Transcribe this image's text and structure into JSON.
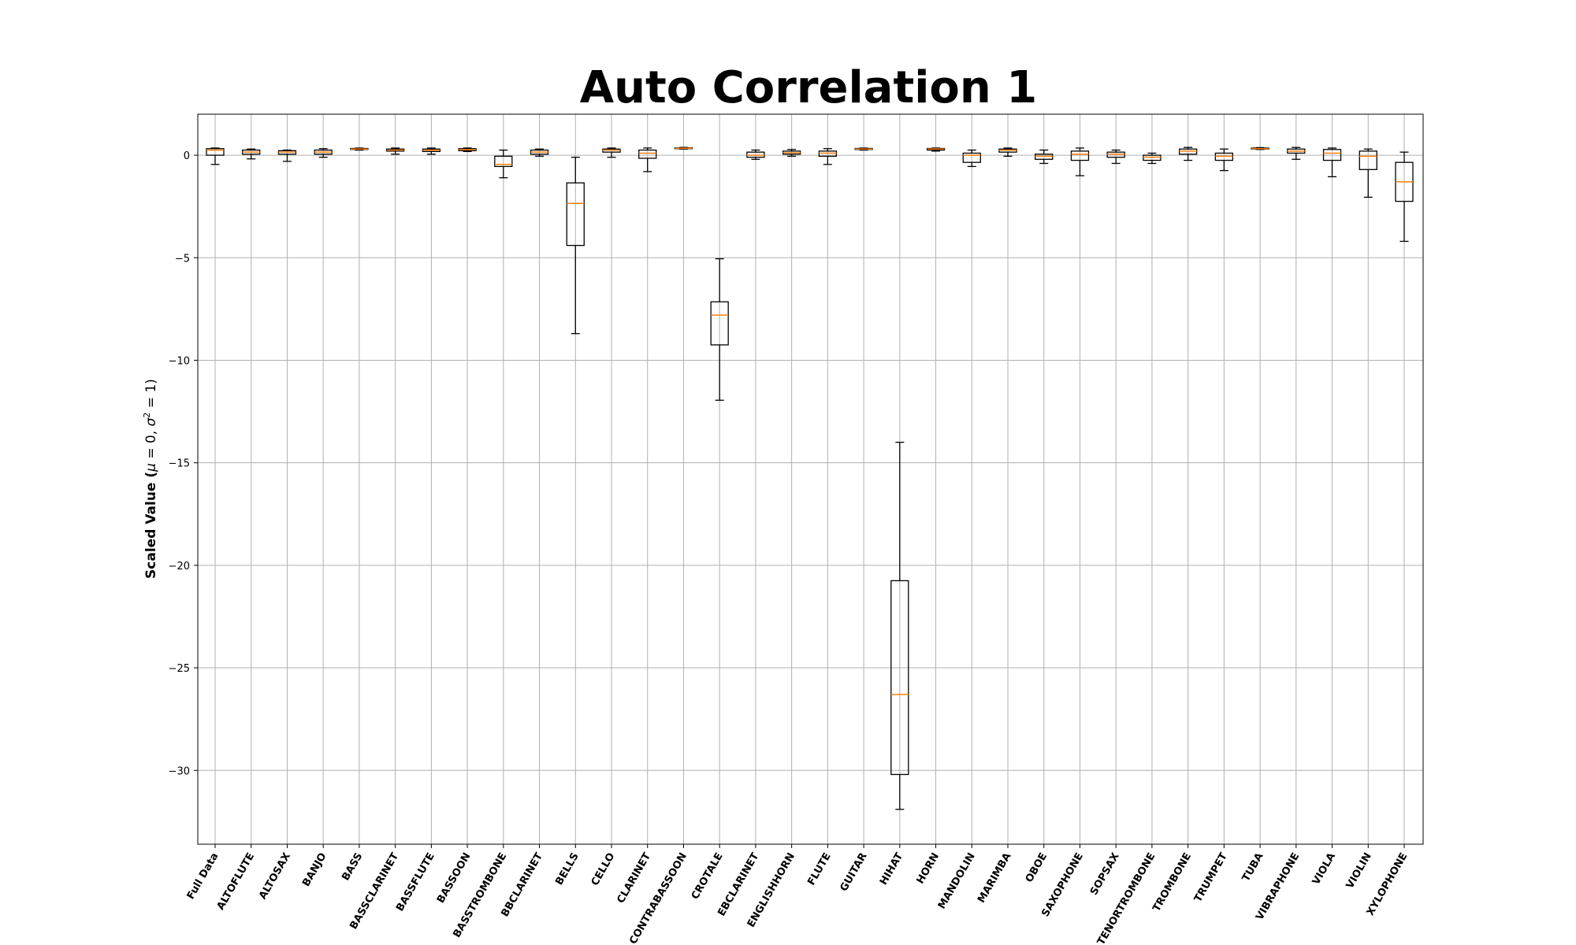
{
  "chart_data": {
    "type": "boxplot",
    "title": "Auto Correlation 1",
    "ylabel_prefix": "Scaled Value (",
    "ylabel_mu": "μ",
    "ylabel_mid": " = 0, ",
    "ylabel_sigma": "σ",
    "ylabel_sup": "2",
    "ylabel_suffix": " = 1)",
    "ylim": [
      -33.6,
      2.0
    ],
    "yticks": [
      0,
      -5,
      -10,
      -15,
      -20,
      -25,
      -30
    ],
    "ytick_labels": [
      "0",
      "−5",
      "−10",
      "−15",
      "−20",
      "−25",
      "−30"
    ],
    "grid": true,
    "categories": [
      "Full Data",
      "ALTOFLUTE",
      "ALTOSAX",
      "BANJO",
      "BASS",
      "BASSCLARINET",
      "BASSFLUTE",
      "BASSOON",
      "BASSTROMBONE",
      "BBCLARINET",
      "BELLS",
      "CELLO",
      "CLARINET",
      "CONTRABASSOON",
      "CROTALE",
      "EBCLARINET",
      "ENGLISHHORN",
      "FLUTE",
      "GUITAR",
      "HIHAT",
      "HORN",
      "MANDOLIN",
      "MARIMBA",
      "OBOE",
      "SAXOPHONE",
      "SOPSAX",
      "TENORTROMBONE",
      "TROMBONE",
      "TRUMPET",
      "TUBA",
      "VIBRAPHONE",
      "VIOLA",
      "VIOLIN",
      "XYLOPHONE"
    ],
    "series": [
      {
        "boxes": [
          {
            "whislo": -0.45,
            "q1": 0.0,
            "med": 0.25,
            "q3": 0.32,
            "whishi": 0.35
          },
          {
            "whislo": -0.18,
            "q1": 0.05,
            "med": 0.15,
            "q3": 0.25,
            "whishi": 0.3
          },
          {
            "whislo": -0.3,
            "q1": 0.05,
            "med": 0.15,
            "q3": 0.22,
            "whishi": 0.25
          },
          {
            "whislo": -0.1,
            "q1": 0.05,
            "med": 0.15,
            "q3": 0.25,
            "whishi": 0.32
          },
          {
            "whislo": 0.25,
            "q1": 0.28,
            "med": 0.3,
            "q3": 0.33,
            "whishi": 0.35
          },
          {
            "whislo": 0.05,
            "q1": 0.2,
            "med": 0.25,
            "q3": 0.3,
            "whishi": 0.35
          },
          {
            "whislo": 0.05,
            "q1": 0.18,
            "med": 0.25,
            "q3": 0.3,
            "whishi": 0.35
          },
          {
            "whislo": 0.18,
            "q1": 0.22,
            "med": 0.27,
            "q3": 0.32,
            "whishi": 0.35
          },
          {
            "whislo": -1.1,
            "q1": -0.55,
            "med": -0.45,
            "q3": -0.05,
            "whishi": 0.25
          },
          {
            "whislo": -0.05,
            "q1": 0.05,
            "med": 0.15,
            "q3": 0.25,
            "whishi": 0.3
          },
          {
            "whislo": -8.7,
            "q1": -4.4,
            "med": -2.35,
            "q3": -1.35,
            "whishi": -0.1
          },
          {
            "whislo": -0.1,
            "q1": 0.15,
            "med": 0.25,
            "q3": 0.3,
            "whishi": 0.35
          },
          {
            "whislo": -0.8,
            "q1": -0.15,
            "med": 0.1,
            "q3": 0.25,
            "whishi": 0.35
          },
          {
            "whislo": 0.3,
            "q1": 0.32,
            "med": 0.34,
            "q3": 0.36,
            "whishi": 0.38
          },
          {
            "whislo": -11.95,
            "q1": -9.25,
            "med": -7.8,
            "q3": -7.15,
            "whishi": -5.05
          },
          {
            "whislo": -0.2,
            "q1": -0.1,
            "med": 0.0,
            "q3": 0.15,
            "whishi": 0.25
          },
          {
            "whislo": -0.05,
            "q1": 0.05,
            "med": 0.12,
            "q3": 0.2,
            "whishi": 0.28
          },
          {
            "whislo": -0.45,
            "q1": -0.05,
            "med": 0.1,
            "q3": 0.2,
            "whishi": 0.32
          },
          {
            "whislo": 0.25,
            "q1": 0.28,
            "med": 0.3,
            "q3": 0.33,
            "whishi": 0.35
          },
          {
            "whislo": -31.9,
            "q1": -30.2,
            "med": -26.3,
            "q3": -20.75,
            "whishi": -14.0
          },
          {
            "whislo": 0.2,
            "q1": 0.25,
            "med": 0.3,
            "q3": 0.33,
            "whishi": 0.35
          },
          {
            "whislo": -0.55,
            "q1": -0.35,
            "med": 0.0,
            "q3": 0.1,
            "whishi": 0.25
          },
          {
            "whislo": -0.05,
            "q1": 0.15,
            "med": 0.25,
            "q3": 0.3,
            "whishi": 0.35
          },
          {
            "whislo": -0.4,
            "q1": -0.2,
            "med": -0.05,
            "q3": 0.05,
            "whishi": 0.25
          },
          {
            "whislo": -1.0,
            "q1": -0.25,
            "med": 0.05,
            "q3": 0.2,
            "whishi": 0.35
          },
          {
            "whislo": -0.4,
            "q1": -0.1,
            "med": 0.05,
            "q3": 0.15,
            "whishi": 0.25
          },
          {
            "whislo": -0.4,
            "q1": -0.25,
            "med": -0.1,
            "q3": 0.0,
            "whishi": 0.1
          },
          {
            "whislo": -0.25,
            "q1": 0.05,
            "med": 0.2,
            "q3": 0.3,
            "whishi": 0.38
          },
          {
            "whislo": -0.75,
            "q1": -0.25,
            "med": -0.05,
            "q3": 0.1,
            "whishi": 0.3
          },
          {
            "whislo": 0.28,
            "q1": 0.3,
            "med": 0.32,
            "q3": 0.35,
            "whishi": 0.37
          },
          {
            "whislo": -0.2,
            "q1": 0.1,
            "med": 0.2,
            "q3": 0.3,
            "whishi": 0.38
          },
          {
            "whislo": -1.05,
            "q1": -0.25,
            "med": 0.1,
            "q3": 0.28,
            "whishi": 0.35
          },
          {
            "whislo": -2.05,
            "q1": -0.7,
            "med": -0.05,
            "q3": 0.2,
            "whishi": 0.3
          },
          {
            "whislo": -4.2,
            "q1": -2.25,
            "med": -1.3,
            "q3": -0.35,
            "whishi": 0.15
          }
        ]
      }
    ],
    "colors": {
      "box": "#000000",
      "median": "#ff7f0e",
      "grid": "#b0b0b0"
    }
  }
}
